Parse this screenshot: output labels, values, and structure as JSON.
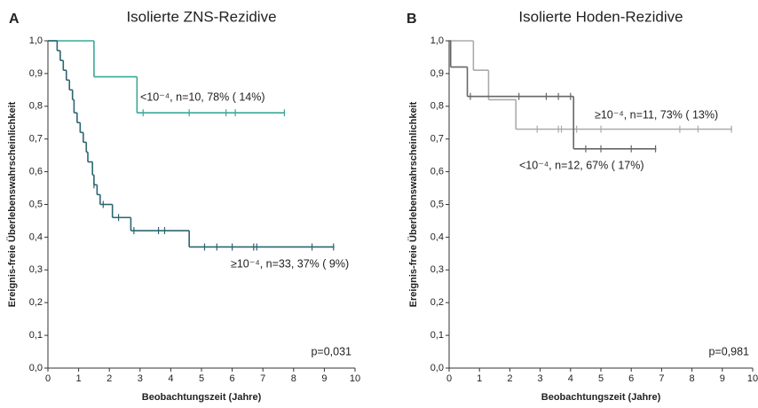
{
  "chart_data": [
    {
      "type": "step",
      "panel": "A",
      "title": "Isolierte ZNS-Rezidive",
      "x_label": "Beobachtungszeit (Jahre)",
      "y_label": "Ereignis-freie Überlebenswahrscheinlichkeit",
      "annotation": "p=0,031",
      "xlim": [
        0,
        10
      ],
      "xticks": [
        0,
        1,
        2,
        3,
        4,
        5,
        6,
        7,
        8,
        9,
        10
      ],
      "ylim": [
        0,
        1
      ],
      "yticks": [
        {
          "value": 0,
          "label": "0,0"
        },
        {
          "value": 0.1,
          "label": "0,1"
        },
        {
          "value": 0.2,
          "label": "0,2"
        },
        {
          "value": 0.3,
          "label": "0,3"
        },
        {
          "value": 0.4,
          "label": "0,4"
        },
        {
          "value": 0.5,
          "label": "0,5"
        },
        {
          "value": 0.6,
          "label": "0,6"
        },
        {
          "value": 0.7,
          "label": "0,7"
        },
        {
          "value": 0.8,
          "label": "0,8"
        },
        {
          "value": 0.9,
          "label": "0,9"
        },
        {
          "value": 1,
          "label": "1,0"
        }
      ],
      "series": [
        {
          "name": "<10⁻⁴, n=10, 78% (  14%)",
          "color": "#3aa898",
          "x": [
            0,
            1.5,
            2.9,
            7.7
          ],
          "values": [
            1,
            0.89,
            0.78,
            0.78
          ],
          "censored": [
            3.1,
            4.6,
            5.8,
            6.1,
            7.7
          ]
        },
        {
          "name": "≥10⁻⁴, n=33, 37% (  9%)",
          "color": "#2d6572",
          "x": [
            0,
            0.3,
            0.4,
            0.5,
            0.6,
            0.7,
            0.8,
            0.85,
            0.95,
            1.05,
            1.15,
            1.25,
            1.3,
            1.45,
            1.5,
            1.6,
            1.7,
            2.1,
            2.7,
            4.6,
            9.3
          ],
          "values": [
            1,
            0.97,
            0.94,
            0.91,
            0.88,
            0.85,
            0.82,
            0.78,
            0.75,
            0.72,
            0.69,
            0.66,
            0.63,
            0.59,
            0.56,
            0.53,
            0.5,
            0.46,
            0.42,
            0.37,
            0.37
          ],
          "censored": [
            1.5,
            1.8,
            2.3,
            2.8,
            3.6,
            3.8,
            5.1,
            5.5,
            6.0,
            6.7,
            6.8,
            8.6,
            9.3
          ]
        }
      ]
    },
    {
      "type": "step",
      "panel": "B",
      "title": "Isolierte Hoden-Rezidive",
      "x_label": "Beobachtungszeit (Jahre)",
      "y_label": "Ereignis-freie Überlebenswahrscheinlichkeit",
      "annotation": "p=0,981",
      "xlim": [
        0,
        10
      ],
      "xticks": [
        0,
        1,
        2,
        3,
        4,
        5,
        6,
        7,
        8,
        9,
        10
      ],
      "ylim": [
        0,
        1
      ],
      "yticks": [
        {
          "value": 0,
          "label": "0,0"
        },
        {
          "value": 0.1,
          "label": "0,1"
        },
        {
          "value": 0.2,
          "label": "0,2"
        },
        {
          "value": 0.3,
          "label": "0,3"
        },
        {
          "value": 0.4,
          "label": "0,4"
        },
        {
          "value": 0.5,
          "label": "0,5"
        },
        {
          "value": 0.6,
          "label": "0,6"
        },
        {
          "value": 0.7,
          "label": "0,7"
        },
        {
          "value": 0.8,
          "label": "0,8"
        },
        {
          "value": 0.9,
          "label": "0,9"
        },
        {
          "value": 1,
          "label": "1,0"
        }
      ],
      "series": [
        {
          "name": "≥10⁻⁴, n=11, 73% (  13%)",
          "color": "#aaaaaa",
          "x": [
            0,
            0.8,
            1.3,
            2.2,
            9.3
          ],
          "values": [
            1,
            0.91,
            0.82,
            0.73,
            0.73
          ],
          "censored": [
            2.9,
            3.6,
            3.7,
            4.2,
            5.0,
            7.6,
            8.2,
            9.3
          ]
        },
        {
          "name": "<10⁻⁴, n=12, 67% (  17%)",
          "color": "#666666",
          "x": [
            0,
            0.05,
            0.6,
            4.1,
            6.8
          ],
          "values": [
            1,
            0.92,
            0.83,
            0.67,
            0.67
          ],
          "censored": [
            0.7,
            2.3,
            3.2,
            3.6,
            4.0,
            4.5,
            5.0,
            6.0,
            6.8
          ]
        }
      ]
    }
  ]
}
